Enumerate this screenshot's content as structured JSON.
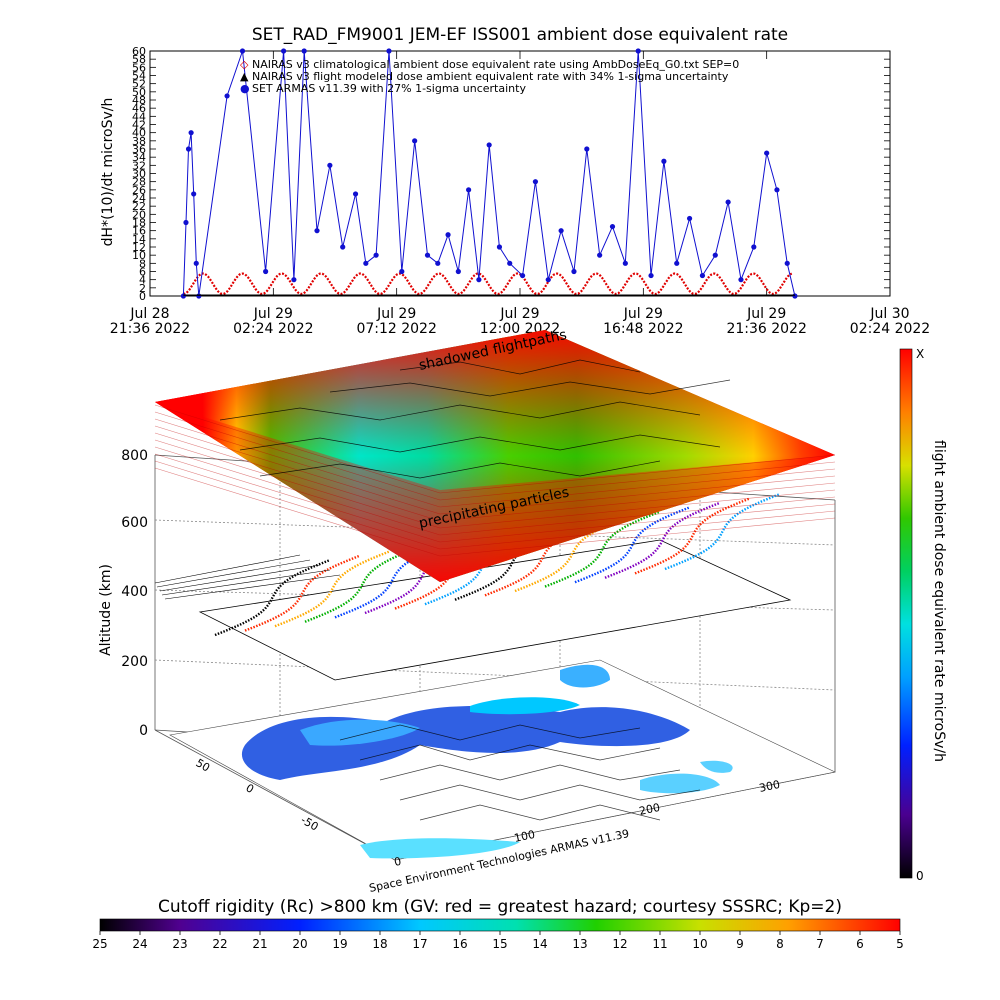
{
  "chart_data": [
    {
      "type": "line",
      "title": "SET_RAD_FM9001  JEM-EF ISS001 ambient dose equivalent rate",
      "ylabel": "dH*(10)/dt microSv/h",
      "ylim": [
        0,
        60
      ],
      "y_ticks": [
        "0",
        "2",
        "4",
        "6",
        "8",
        "10",
        "12",
        "14",
        "16",
        "18",
        "20",
        "22",
        "24",
        "26",
        "28",
        "30",
        "32",
        "34",
        "36",
        "38",
        "40",
        "42",
        "44",
        "46",
        "48",
        "50",
        "52",
        "54",
        "56",
        "58",
        "60"
      ],
      "x_ticks": [
        {
          "date": "Jul 28",
          "time": "21:36 2022"
        },
        {
          "date": "Jul 29",
          "time": "02:24 2022"
        },
        {
          "date": "Jul 29",
          "time": "07:12 2022"
        },
        {
          "date": "Jul 29",
          "time": "12:00 2022"
        },
        {
          "date": "Jul 29",
          "time": "16:48 2022"
        },
        {
          "date": "Jul 29",
          "time": "21:36 2022"
        },
        {
          "date": "Jul 30",
          "time": "02:24 2022"
        }
      ],
      "x_hours": [
        0,
        4.8,
        9.6,
        14.4,
        19.2,
        24,
        28.8
      ],
      "legend": [
        {
          "symbol": "◇",
          "color": "#e00000",
          "label": "NAIRAS v3 climatological ambient dose equivalent rate using AmbDoseEq_G0.txt SEP=0"
        },
        {
          "symbol": "▲",
          "color": "#000000",
          "label": "NAIRAS v3 flight modeled dose ambient equivalent rate with 34% 1-sigma uncertainty"
        },
        {
          "symbol": "●",
          "color": "#1010d0",
          "label": "SET ARMAS v11.39 with 27% 1-sigma uncertainty"
        }
      ],
      "series": [
        {
          "name": "SET ARMAS v11.39 with 27% 1-sigma uncertainty",
          "color": "#1010d0",
          "x": [
            1.3,
            1.4,
            1.5,
            1.6,
            1.7,
            1.8,
            1.9,
            3.0,
            3.6,
            4.5,
            5.2,
            5.6,
            6.0,
            6.5,
            7.0,
            7.5,
            8.0,
            8.4,
            8.8,
            9.3,
            9.8,
            10.3,
            10.8,
            11.2,
            11.6,
            12.0,
            12.4,
            12.8,
            13.2,
            13.6,
            14.0,
            14.5,
            15.0,
            15.5,
            16.0,
            16.5,
            17.0,
            17.5,
            18.0,
            18.5,
            19.0,
            19.5,
            20.0,
            20.5,
            21.0,
            21.5,
            22.0,
            22.5,
            23.0,
            23.5,
            24.0,
            24.4,
            24.8,
            25.1
          ],
          "y": [
            0,
            18,
            36,
            40,
            25,
            8,
            0,
            49,
            60,
            6,
            60,
            4,
            60,
            16,
            32,
            12,
            25,
            8,
            10,
            60,
            6,
            38,
            10,
            8,
            15,
            6,
            26,
            4,
            37,
            12,
            8,
            5,
            28,
            4,
            16,
            6,
            36,
            10,
            17,
            8,
            60,
            5,
            33,
            8,
            19,
            5,
            10,
            23,
            4,
            12,
            35,
            26,
            8,
            0
          ]
        },
        {
          "name": "NAIRAS v3 climatological ambient dose equivalent rate using AmbDoseEq_G0.txt SEP=0",
          "color": "#e00000",
          "x_start": 1.3,
          "x_end": 25.0,
          "period_h": 1.53,
          "y_min": 0.5,
          "y_max": 5.5
        }
      ]
    },
    {
      "type": "heatmap",
      "label_top": "shadowed flightpaths",
      "label_mid": "precipitating particles",
      "ylabel": "Altitude (km)",
      "alt_ticks": [
        "0",
        "200",
        "400",
        "600",
        "800"
      ],
      "lat_ticks": [
        "50",
        "0",
        "-50"
      ],
      "lon_ticks": [
        "0",
        "100",
        "200",
        "300"
      ],
      "credit": "Space Environment Technologies ARMAS v11.39",
      "colorbar": {
        "label": "flight ambient dose equivalent rate microSv/h",
        "top": "X",
        "bottom": "0"
      }
    },
    {
      "type": "heatmap",
      "title": "Cutoff rigidity (Rc) >800 km (GV: red = greatest hazard; courtesy SSSRC; Kp=2)",
      "values": [
        "25",
        "24",
        "23",
        "22",
        "21",
        "20",
        "19",
        "18",
        "17",
        "16",
        "15",
        "14",
        "13",
        "12",
        "11",
        "10",
        "9",
        "8",
        "7",
        "6",
        "5"
      ]
    }
  ]
}
